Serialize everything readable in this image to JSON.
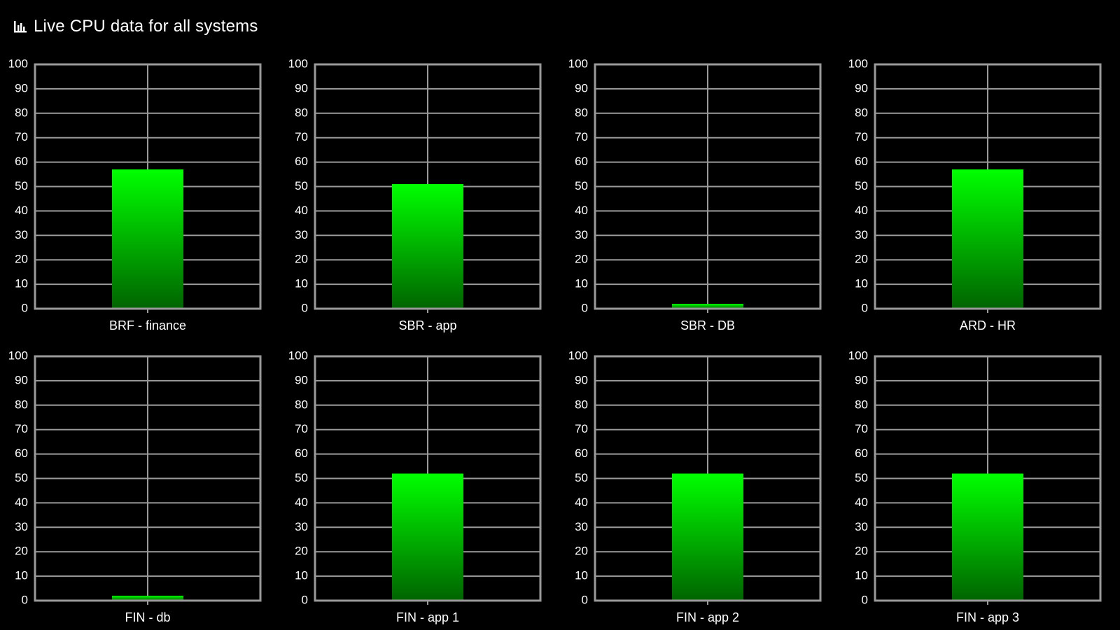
{
  "header": {
    "title": "Live CPU data for all systems",
    "icon": "bar-chart-icon"
  },
  "colors": {
    "background": "#000000",
    "grid": "#9a9a9a",
    "bar_top": "#00ff00",
    "bar_bottom": "#006400",
    "text": "#ffffff"
  },
  "chart_data": [
    {
      "type": "bar",
      "title": "",
      "categories": [
        "BRF - finance"
      ],
      "values": [
        57
      ],
      "ylim": [
        0,
        100
      ],
      "yticks": [
        0,
        10,
        20,
        30,
        40,
        50,
        60,
        70,
        80,
        90,
        100
      ],
      "grid": true
    },
    {
      "type": "bar",
      "title": "",
      "categories": [
        "SBR - app"
      ],
      "values": [
        51
      ],
      "ylim": [
        0,
        100
      ],
      "yticks": [
        0,
        10,
        20,
        30,
        40,
        50,
        60,
        70,
        80,
        90,
        100
      ],
      "grid": true
    },
    {
      "type": "bar",
      "title": "",
      "categories": [
        "SBR - DB"
      ],
      "values": [
        2
      ],
      "ylim": [
        0,
        100
      ],
      "yticks": [
        0,
        10,
        20,
        30,
        40,
        50,
        60,
        70,
        80,
        90,
        100
      ],
      "grid": true
    },
    {
      "type": "bar",
      "title": "",
      "categories": [
        "ARD - HR"
      ],
      "values": [
        57
      ],
      "ylim": [
        0,
        100
      ],
      "yticks": [
        0,
        10,
        20,
        30,
        40,
        50,
        60,
        70,
        80,
        90,
        100
      ],
      "grid": true
    },
    {
      "type": "bar",
      "title": "",
      "categories": [
        "FIN - db"
      ],
      "values": [
        2
      ],
      "ylim": [
        0,
        100
      ],
      "yticks": [
        0,
        10,
        20,
        30,
        40,
        50,
        60,
        70,
        80,
        90,
        100
      ],
      "grid": true
    },
    {
      "type": "bar",
      "title": "",
      "categories": [
        "FIN - app 1"
      ],
      "values": [
        52
      ],
      "ylim": [
        0,
        100
      ],
      "yticks": [
        0,
        10,
        20,
        30,
        40,
        50,
        60,
        70,
        80,
        90,
        100
      ],
      "grid": true
    },
    {
      "type": "bar",
      "title": "",
      "categories": [
        "FIN - app 2"
      ],
      "values": [
        52
      ],
      "ylim": [
        0,
        100
      ],
      "yticks": [
        0,
        10,
        20,
        30,
        40,
        50,
        60,
        70,
        80,
        90,
        100
      ],
      "grid": true
    },
    {
      "type": "bar",
      "title": "",
      "categories": [
        "FIN - app 3"
      ],
      "values": [
        52
      ],
      "ylim": [
        0,
        100
      ],
      "yticks": [
        0,
        10,
        20,
        30,
        40,
        50,
        60,
        70,
        80,
        90,
        100
      ],
      "grid": true
    }
  ]
}
